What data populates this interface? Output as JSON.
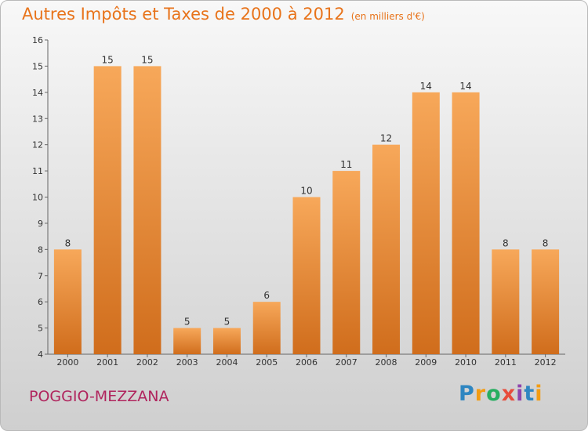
{
  "header": {
    "title": "Autres Impôts et Taxes de 2000 à 2012",
    "unit": "(en milliers d'€)"
  },
  "footer": {
    "place": "POGGIO-MEZZANA",
    "logo_letters": [
      "P",
      "r",
      "o",
      "x",
      "i",
      "t",
      "i"
    ],
    "logo_colors": [
      "#2e86c1",
      "#f39c12",
      "#27ae60",
      "#e74c3c",
      "#8e44ad",
      "#2e86c1",
      "#f39c12"
    ]
  },
  "chart_data": {
    "type": "bar",
    "title": "Autres Impôts et Taxes de 2000 à 2012",
    "subtitle": "(en milliers d'€)",
    "categories": [
      "2000",
      "2001",
      "2002",
      "2003",
      "2004",
      "2005",
      "2006",
      "2007",
      "2008",
      "2009",
      "2010",
      "2011",
      "2012"
    ],
    "values": [
      8,
      15,
      15,
      5,
      5,
      6,
      10,
      11,
      12,
      14,
      14,
      8,
      8
    ],
    "ylim": [
      4,
      16
    ],
    "yticks": [
      4,
      5,
      6,
      7,
      8,
      9,
      10,
      11,
      12,
      13,
      14,
      15,
      16
    ],
    "grid": false,
    "bar_color_top": "#f7a85a",
    "bar_color_bottom": "#d06d1c"
  }
}
